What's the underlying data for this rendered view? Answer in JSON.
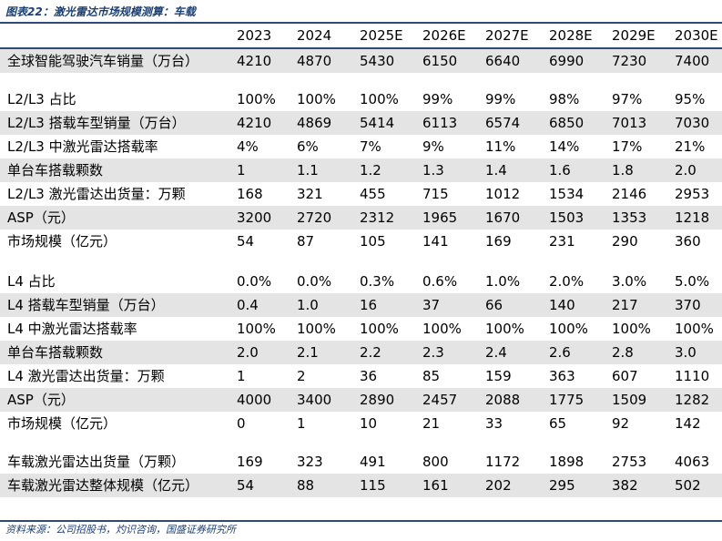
{
  "title": "图表22：激光雷达市场规模测算：车载",
  "years": [
    "2023",
    "2024",
    "2025E",
    "2026E",
    "2027E",
    "2028E",
    "2029E",
    "2030E"
  ],
  "sections": [
    {
      "rows": [
        {
          "label": "全球智能驾驶汽车销量（万台）",
          "shaded": true,
          "values": [
            "4210",
            "4870",
            "5430",
            "6150",
            "6640",
            "6990",
            "7230",
            "7400"
          ]
        }
      ]
    },
    {
      "rows": [
        {
          "label": "L2/L3 占比",
          "shaded": false,
          "values": [
            "100%",
            "100%",
            "100%",
            "99%",
            "99%",
            "98%",
            "97%",
            "95%"
          ]
        },
        {
          "label": "L2/L3 搭载车型销量（万台）",
          "shaded": true,
          "values": [
            "4210",
            "4869",
            "5414",
            "6113",
            "6574",
            "6850",
            "7013",
            "7030"
          ]
        },
        {
          "label": "L2/L3 中激光雷达搭载率",
          "shaded": false,
          "values": [
            "4%",
            "6%",
            "7%",
            "9%",
            "11%",
            "14%",
            "17%",
            "21%"
          ]
        },
        {
          "label": "单台车搭载颗数",
          "shaded": true,
          "values": [
            "1",
            "1.1",
            "1.2",
            "1.3",
            "1.4",
            "1.6",
            "1.8",
            "2.0"
          ]
        },
        {
          "label": "L2/L3 激光雷达出货量：万颗",
          "shaded": false,
          "values": [
            "168",
            "321",
            "455",
            "715",
            "1012",
            "1534",
            "2146",
            "2953"
          ]
        },
        {
          "label": "ASP（元）",
          "shaded": true,
          "values": [
            "3200",
            "2720",
            "2312",
            "1965",
            "1670",
            "1503",
            "1353",
            "1218"
          ]
        },
        {
          "label": "市场规模（亿元）",
          "shaded": false,
          "values": [
            "54",
            "87",
            "105",
            "141",
            "169",
            "231",
            "290",
            "360"
          ]
        }
      ]
    },
    {
      "rows": [
        {
          "label": "L4 占比",
          "shaded": false,
          "values": [
            "0.0%",
            "0.0%",
            "0.3%",
            "0.6%",
            "1.0%",
            "2.0%",
            "3.0%",
            "5.0%"
          ]
        },
        {
          "label": "L4 搭载车型销量（万台）",
          "shaded": true,
          "values": [
            "0.4",
            "1.0",
            "16",
            "37",
            "66",
            "140",
            "217",
            "370"
          ]
        },
        {
          "label": "L4 中激光雷达搭载率",
          "shaded": false,
          "values": [
            "100%",
            "100%",
            "100%",
            "100%",
            "100%",
            "100%",
            "100%",
            "100%"
          ]
        },
        {
          "label": "单台车搭载颗数",
          "shaded": true,
          "values": [
            "2.0",
            "2.1",
            "2.2",
            "2.3",
            "2.4",
            "2.6",
            "2.8",
            "3.0"
          ]
        },
        {
          "label": "L4 激光雷达出货量：万颗",
          "shaded": false,
          "values": [
            "1",
            "2",
            "36",
            "85",
            "159",
            "363",
            "607",
            "1110"
          ]
        },
        {
          "label": "ASP（元）",
          "shaded": true,
          "values": [
            "4000",
            "3400",
            "2890",
            "2457",
            "2088",
            "1775",
            "1509",
            "1282"
          ]
        },
        {
          "label": "市场规模（亿元）",
          "shaded": false,
          "values": [
            "0",
            "1",
            "10",
            "21",
            "33",
            "65",
            "92",
            "142"
          ]
        }
      ]
    },
    {
      "rows": [
        {
          "label": "车载激光雷达出货量（万颗）",
          "shaded": false,
          "values": [
            "169",
            "323",
            "491",
            "800",
            "1172",
            "1898",
            "2753",
            "4063"
          ]
        },
        {
          "label": "车载激光雷达整体规模（亿元）",
          "shaded": true,
          "values": [
            "54",
            "88",
            "115",
            "161",
            "202",
            "295",
            "382",
            "502"
          ]
        }
      ]
    }
  ],
  "source": "资料来源：公司招股书，灼识咨询，国盛证券研究所"
}
